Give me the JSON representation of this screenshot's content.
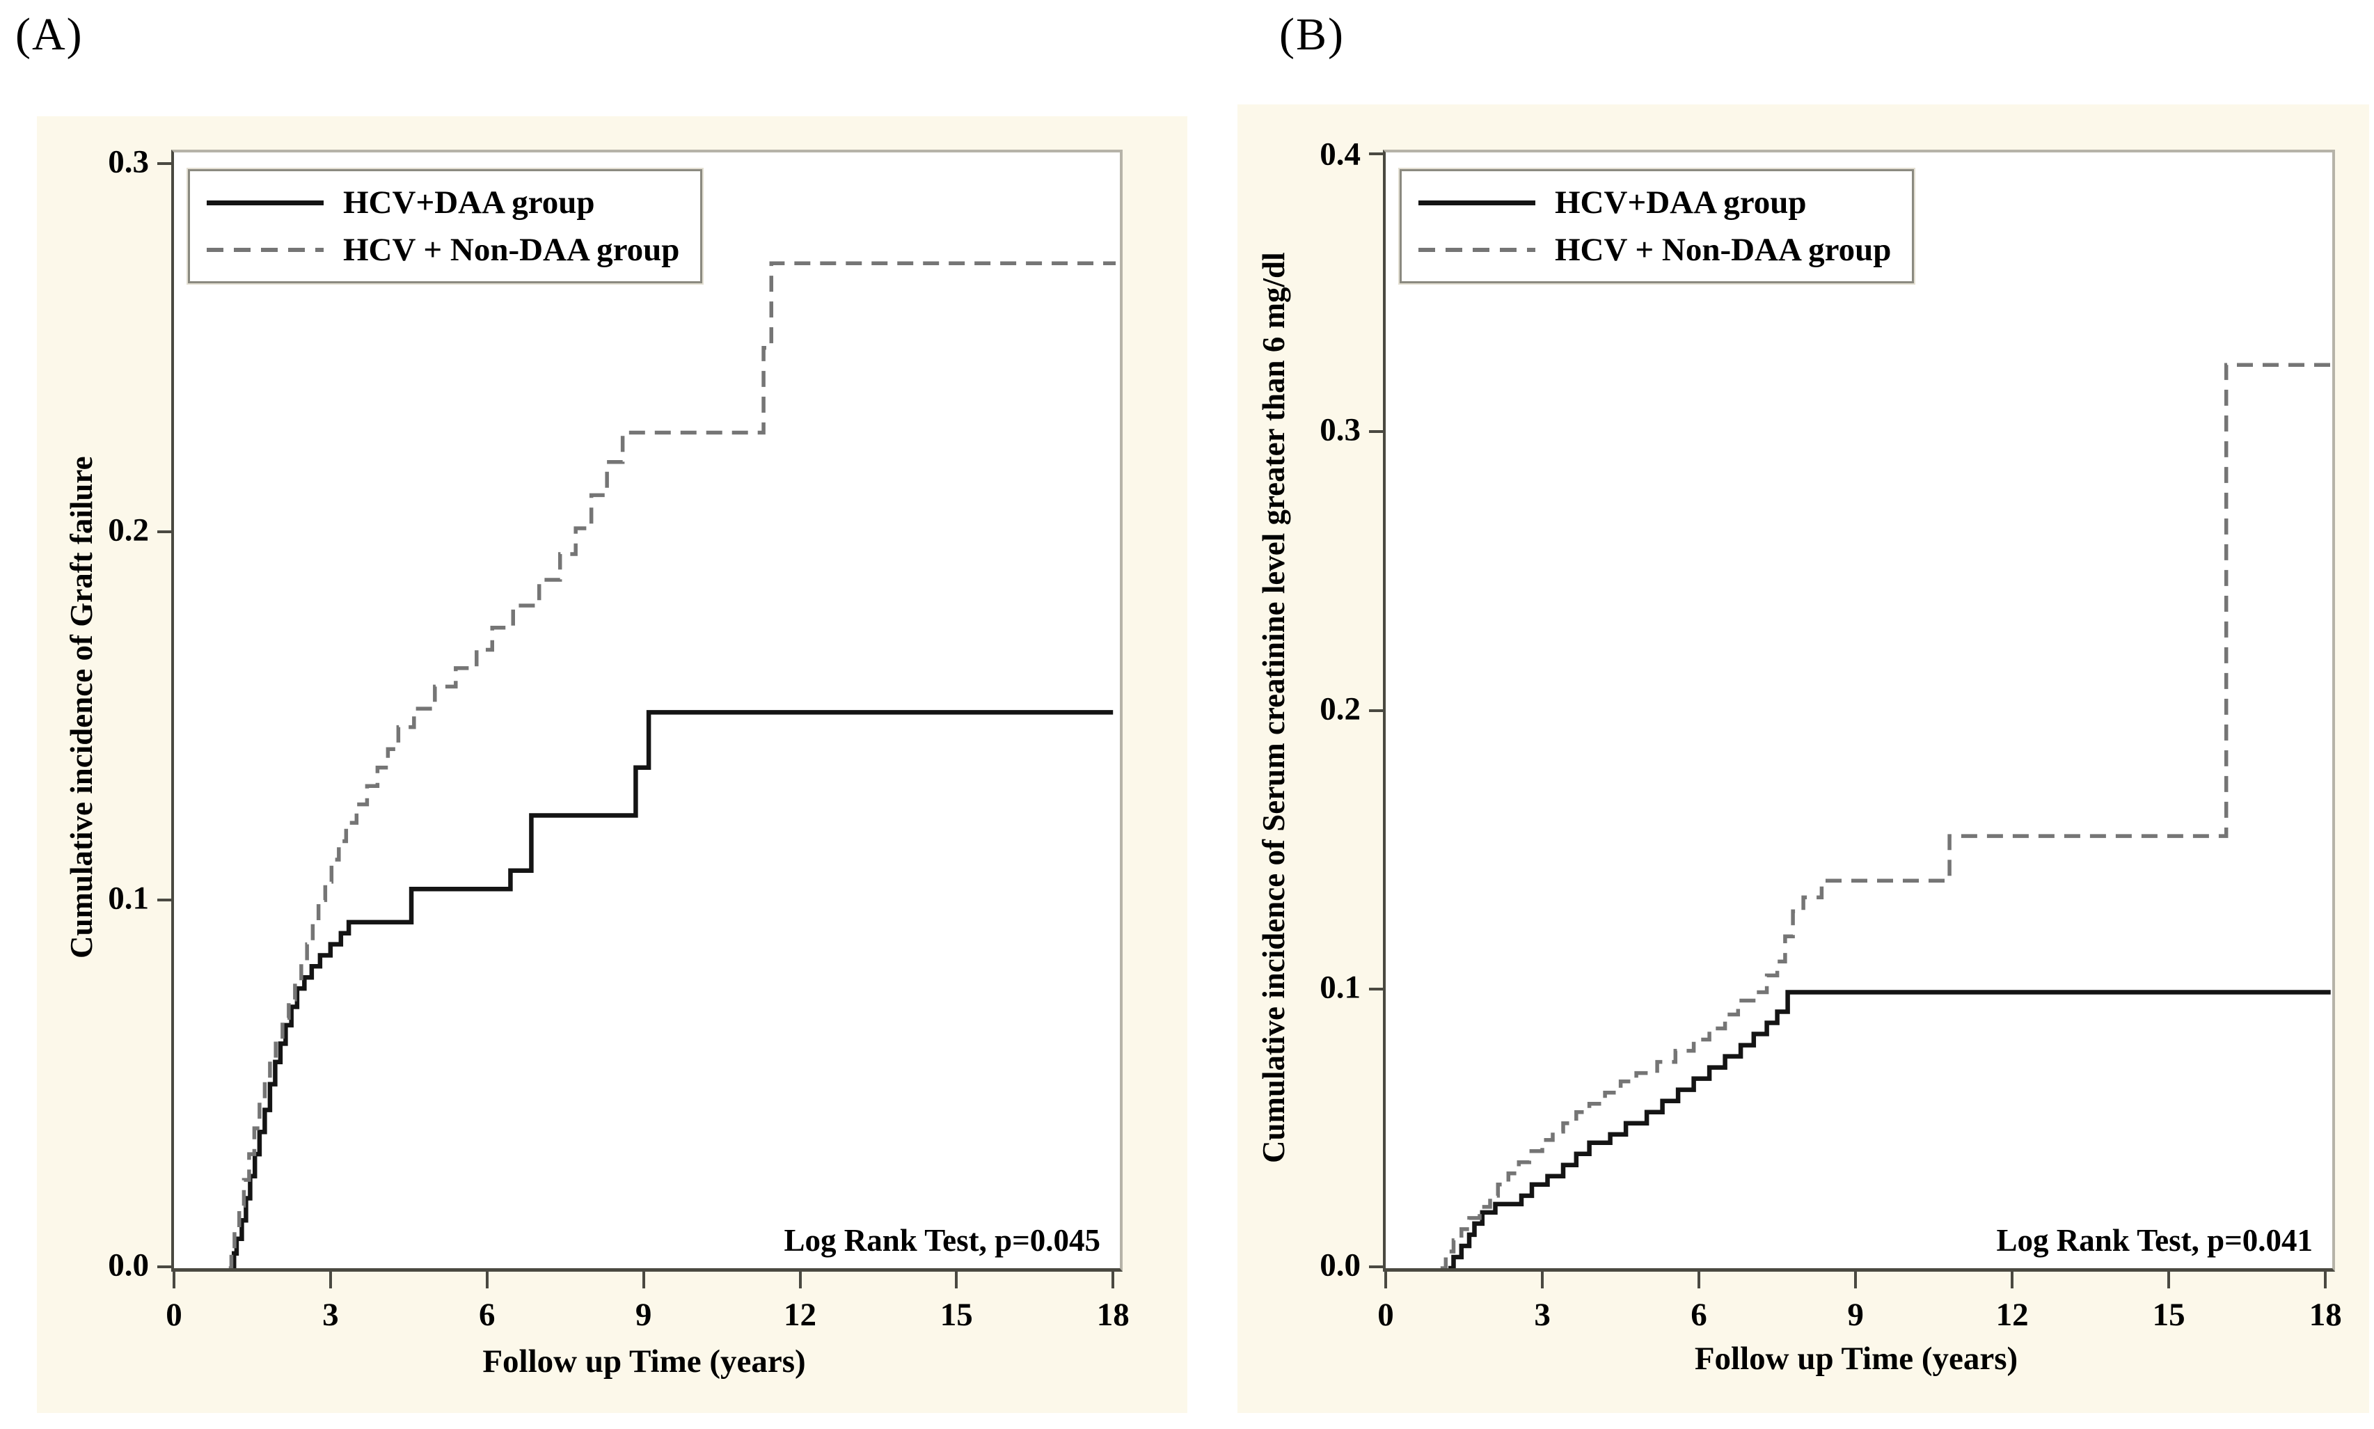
{
  "colors": {
    "canvas": "#fcf8ea",
    "plot_background": "#ffffff",
    "axis": "#4a4941",
    "border_light": "#b6b3a8",
    "solid_series": "#141414",
    "dashed_series": "#757575"
  },
  "chart_data": [
    {
      "type": "line",
      "panel_label": "(A)",
      "xlabel": "Follow up Time (years)",
      "ylabel": "Cumulative incidence of Graft failure",
      "annotation": "Log Rank Test, p=0.045",
      "legend_position": "top-left",
      "grid": false,
      "xlim": [
        0,
        18.13
      ],
      "ylim": [
        0,
        0.3031
      ],
      "xtick_labels": [
        "0",
        "3",
        "6",
        "9",
        "12",
        "15",
        "18"
      ],
      "ytick_labels": [
        "0.3",
        "0.2",
        "0.1",
        "0.0"
      ],
      "series": [
        {
          "name": "HCV+DAA group",
          "style": "solid",
          "color": "#141414",
          "points": [
            [
              1.1,
              0
            ],
            [
              1.15,
              0.004
            ],
            [
              1.2,
              0.008
            ],
            [
              1.3,
              0.013
            ],
            [
              1.38,
              0.019
            ],
            [
              1.46,
              0.025
            ],
            [
              1.55,
              0.031
            ],
            [
              1.64,
              0.037
            ],
            [
              1.74,
              0.043
            ],
            [
              1.84,
              0.05
            ],
            [
              1.94,
              0.056
            ],
            [
              2.04,
              0.061
            ],
            [
              2.14,
              0.066
            ],
            [
              2.25,
              0.071
            ],
            [
              2.36,
              0.076
            ],
            [
              2.5,
              0.079
            ],
            [
              2.64,
              0.082
            ],
            [
              2.8,
              0.085
            ],
            [
              3.0,
              0.088
            ],
            [
              3.2,
              0.091
            ],
            [
              3.35,
              0.094
            ],
            [
              4.55,
              0.103
            ],
            [
              6.45,
              0.108
            ],
            [
              6.85,
              0.123
            ],
            [
              8.85,
              0.136
            ],
            [
              9.1,
              0.151
            ],
            [
              18.0,
              0.151
            ]
          ]
        },
        {
          "name": "HCV + Non-DAA group",
          "style": "dashed",
          "color": "#757575",
          "points": [
            [
              1.05,
              0
            ],
            [
              1.1,
              0.005
            ],
            [
              1.16,
              0.011
            ],
            [
              1.25,
              0.017
            ],
            [
              1.34,
              0.024
            ],
            [
              1.44,
              0.031
            ],
            [
              1.54,
              0.038
            ],
            [
              1.64,
              0.045
            ],
            [
              1.74,
              0.051
            ],
            [
              1.84,
              0.057
            ],
            [
              1.95,
              0.062
            ],
            [
              2.08,
              0.068
            ],
            [
              2.2,
              0.073
            ],
            [
              2.32,
              0.078
            ],
            [
              2.44,
              0.083
            ],
            [
              2.55,
              0.088
            ],
            [
              2.66,
              0.094
            ],
            [
              2.77,
              0.1
            ],
            [
              2.9,
              0.105
            ],
            [
              3.02,
              0.111
            ],
            [
              3.16,
              0.116
            ],
            [
              3.3,
              0.121
            ],
            [
              3.5,
              0.126
            ],
            [
              3.7,
              0.131
            ],
            [
              3.9,
              0.136
            ],
            [
              4.1,
              0.141
            ],
            [
              4.3,
              0.147
            ],
            [
              4.6,
              0.152
            ],
            [
              5.0,
              0.158
            ],
            [
              5.4,
              0.163
            ],
            [
              5.8,
              0.168
            ],
            [
              6.1,
              0.174
            ],
            [
              6.5,
              0.18
            ],
            [
              7.0,
              0.187
            ],
            [
              7.4,
              0.194
            ],
            [
              7.7,
              0.201
            ],
            [
              8.0,
              0.21
            ],
            [
              8.3,
              0.219
            ],
            [
              8.6,
              0.227
            ],
            [
              11.3,
              0.25
            ],
            [
              11.45,
              0.273
            ],
            [
              18.05,
              0.273
            ]
          ]
        }
      ]
    },
    {
      "type": "line",
      "panel_label": "(B)",
      "xlabel": "Follow up Time (years)",
      "ylabel": "Cumulative incidence of Serum creatinine level greater than 6 mg/dl",
      "annotation": "Log Rank Test, p=0.041",
      "legend_position": "top-left",
      "grid": false,
      "xlim": [
        0,
        18.13
      ],
      "ylim": [
        0,
        0.4002
      ],
      "xtick_labels": [
        "0",
        "3",
        "6",
        "9",
        "12",
        "15",
        "18"
      ],
      "ytick_labels": [
        "0.4",
        "0.3",
        "0.2",
        "0.1",
        "0.0"
      ],
      "series": [
        {
          "name": "HCV+DAA group",
          "style": "solid",
          "color": "#141414",
          "points": [
            [
              1.2,
              0
            ],
            [
              1.3,
              0.004
            ],
            [
              1.45,
              0.008
            ],
            [
              1.6,
              0.012
            ],
            [
              1.7,
              0.016
            ],
            [
              1.85,
              0.02
            ],
            [
              2.1,
              0.023
            ],
            [
              2.6,
              0.026
            ],
            [
              2.8,
              0.03
            ],
            [
              3.1,
              0.033
            ],
            [
              3.4,
              0.037
            ],
            [
              3.65,
              0.041
            ],
            [
              3.9,
              0.045
            ],
            [
              4.3,
              0.048
            ],
            [
              4.6,
              0.052
            ],
            [
              5.0,
              0.056
            ],
            [
              5.3,
              0.06
            ],
            [
              5.6,
              0.064
            ],
            [
              5.9,
              0.068
            ],
            [
              6.2,
              0.072
            ],
            [
              6.5,
              0.076
            ],
            [
              6.8,
              0.08
            ],
            [
              7.05,
              0.084
            ],
            [
              7.3,
              0.088
            ],
            [
              7.5,
              0.092
            ],
            [
              7.7,
              0.099
            ],
            [
              18.1,
              0.099
            ]
          ]
        },
        {
          "name": "HCV + Non-DAA group",
          "style": "dashed",
          "color": "#757575",
          "points": [
            [
              1.05,
              0
            ],
            [
              1.15,
              0.006
            ],
            [
              1.3,
              0.01
            ],
            [
              1.45,
              0.014
            ],
            [
              1.6,
              0.018
            ],
            [
              1.8,
              0.022
            ],
            [
              2.0,
              0.026
            ],
            [
              2.15,
              0.03
            ],
            [
              2.35,
              0.034
            ],
            [
              2.55,
              0.038
            ],
            [
              2.75,
              0.042
            ],
            [
              3.0,
              0.046
            ],
            [
              3.2,
              0.049
            ],
            [
              3.4,
              0.052
            ],
            [
              3.65,
              0.056
            ],
            [
              3.9,
              0.059
            ],
            [
              4.2,
              0.063
            ],
            [
              4.5,
              0.067
            ],
            [
              4.8,
              0.07
            ],
            [
              5.2,
              0.074
            ],
            [
              5.55,
              0.078
            ],
            [
              5.9,
              0.082
            ],
            [
              6.2,
              0.086
            ],
            [
              6.5,
              0.091
            ],
            [
              6.75,
              0.096
            ],
            [
              7.1,
              0.099
            ],
            [
              7.3,
              0.105
            ],
            [
              7.5,
              0.11
            ],
            [
              7.65,
              0.119
            ],
            [
              7.8,
              0.128
            ],
            [
              8.0,
              0.133
            ],
            [
              8.35,
              0.139
            ],
            [
              10.8,
              0.155
            ],
            [
              16.1,
              0.324
            ],
            [
              18.1,
              0.324
            ]
          ]
        }
      ]
    }
  ]
}
